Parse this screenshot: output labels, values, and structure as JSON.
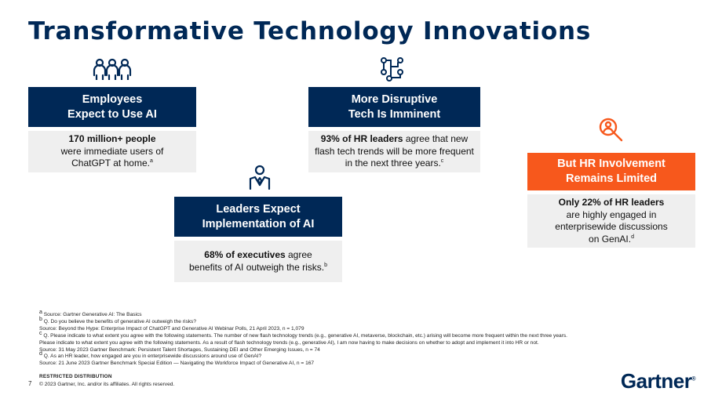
{
  "title": "Transformative Technology Innovations",
  "cards": {
    "employees": {
      "icon": "people-group-icon",
      "head_line1": "Employees",
      "head_line2": "Expect to Use AI",
      "body_bold": "170 million+ people",
      "body_line2": "were immediate users of",
      "body_line3": "ChatGPT at home.",
      "footnote": "a"
    },
    "disruptive": {
      "icon": "network-nodes-icon",
      "head_line1": "More Disruptive",
      "head_line2": "Tech Is Imminent",
      "body_bold": "93% of HR leaders",
      "body_rest1": " agree that new",
      "body_line2": "flash tech trends will be more frequent",
      "body_line3": "in the next three years.",
      "footnote": "c"
    },
    "leaders": {
      "icon": "leader-person-icon",
      "head_line1": "Leaders Expect",
      "head_line2": "Implementation of AI",
      "body_bold": "68% of executives",
      "body_rest1": " agree",
      "body_line2": "benefits of AI outweigh the risks.",
      "footnote": "b"
    },
    "hr": {
      "icon": "magnifier-person-icon",
      "head_line1": "But HR Involvement",
      "head_line2": "Remains Limited",
      "body_bold": "Only 22% of HR leaders",
      "body_line2": "are highly engaged in",
      "body_line3": "enterprisewide discussions",
      "body_line4": "on GenAI.",
      "footnote": "d"
    }
  },
  "footnotes": {
    "a_mark": "a",
    "a": " Source: Gartner Generative AI: The Basics",
    "b_mark": "b",
    "b": " Q. Do you believe the benefits of generative AI outweigh the risks?",
    "b_source": "Source: Beyond the Hype: Enterprise Impact of ChatGPT and Generative AI Webinar Polls, 21 April 2023, n = 1,079",
    "c_mark": "c",
    "c": " Q. Please indicate to what extent you agree with the following statements. The number of new flash technology trends (e.g., generative AI, metaverse, blockchain, etc.) arising will become more frequent within the next three years.",
    "c_line2": "Please indicate to what extent you agree with the following statements. As a result of flash technology trends (e.g., generative AI), I am now having to make decisions on whether to adopt and implement it into HR or not.",
    "c_source": "Source: 31 May 2023 Gartner Benchmark: Persistent Talent Shortages, Sustaining DEI and Other Emerging Issues, n = 74",
    "d_mark": "d",
    "d": " Q. As an HR leader, how engaged are you in enterprisewide discussions around use of GenAI?",
    "d_source": "Source: 21 June 2023 Gartner Benchmark Special Edition — Navigating the Workforce Impact of Generative AI, n = 167"
  },
  "footer": {
    "page_number": "7",
    "restricted": "RESTRICTED DISTRIBUTION",
    "copyright": "© 2023 Gartner, Inc. and/or its affiliates. All rights reserved.",
    "logo": "Gartner",
    "logo_mark": "®"
  },
  "colors": {
    "navy": "#002856",
    "orange": "#F7581C",
    "card_bg": "#efefef"
  }
}
